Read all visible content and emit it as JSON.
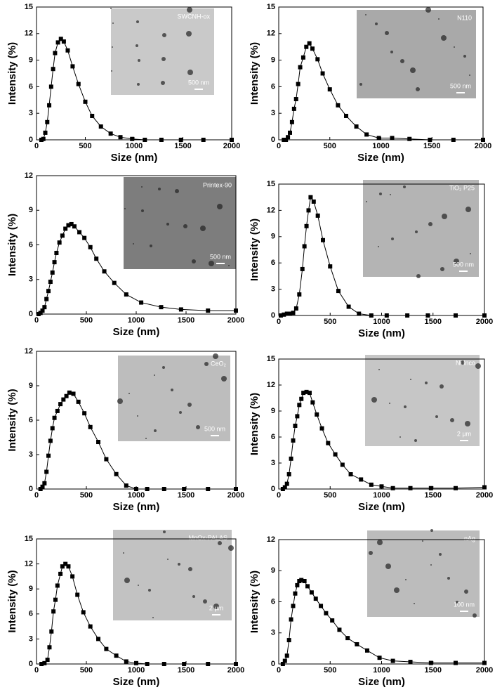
{
  "chart_data": [
    {
      "type": "line",
      "xlabel": "Size (nm)",
      "ylabel": "Intensity (%)",
      "inset_label": "SWCNH-ox",
      "scale_label": "500 nm",
      "color": "#000000",
      "x": [
        50,
        70,
        90,
        110,
        130,
        150,
        170,
        190,
        220,
        250,
        280,
        320,
        370,
        430,
        500,
        570,
        660,
        760,
        860,
        980,
        1110,
        1280,
        1480,
        1710,
        2000
      ],
      "values": [
        0,
        0.1,
        0.8,
        2,
        3.9,
        6,
        8,
        9.8,
        11,
        11.4,
        11.1,
        10.1,
        8.3,
        6.3,
        4.3,
        2.7,
        1.5,
        0.7,
        0.3,
        0.1,
        0,
        0,
        0,
        0,
        0
      ],
      "xlim": [
        0,
        2000
      ],
      "ylim": [
        0,
        15
      ],
      "xticks": [
        0,
        500,
        1000,
        1500,
        2000
      ],
      "yticks": [
        0,
        3,
        6,
        9,
        12,
        15
      ]
    },
    {
      "type": "line",
      "xlabel": "Size (nm)",
      "ylabel": "Intensity (%)",
      "inset_label": "N110",
      "scale_label": "500 nm",
      "color": "#000000",
      "x": [
        50,
        70,
        90,
        110,
        130,
        150,
        170,
        190,
        210,
        240,
        270,
        300,
        330,
        380,
        430,
        500,
        580,
        660,
        760,
        860,
        980,
        1110,
        1280,
        1480,
        1710,
        2000
      ],
      "values": [
        0,
        0,
        0.3,
        0.8,
        2,
        3.5,
        4.6,
        6.3,
        8.2,
        9.3,
        10.5,
        10.9,
        10.3,
        9.1,
        7.5,
        5.7,
        3.9,
        2.7,
        1.5,
        0.6,
        0.2,
        0.2,
        0.1,
        0,
        0,
        0
      ],
      "xlim": [
        0,
        2000
      ],
      "ylim": [
        0,
        15
      ],
      "xticks": [
        0,
        500,
        1000,
        1500,
        2000
      ],
      "yticks": [
        0,
        3,
        6,
        9,
        12,
        15
      ]
    },
    {
      "type": "line",
      "xlabel": "Size (nm)",
      "ylabel": "Intensity (%)",
      "inset_label": "Printex-90",
      "scale_label": "500 nm",
      "color": "#000000",
      "x": [
        20,
        40,
        60,
        80,
        100,
        120,
        140,
        160,
        180,
        200,
        230,
        260,
        290,
        320,
        350,
        380,
        430,
        480,
        540,
        600,
        680,
        780,
        900,
        1050,
        1250,
        1450,
        1720,
        2000
      ],
      "values": [
        0,
        0.1,
        0.3,
        0.6,
        1.3,
        2,
        2.8,
        3.6,
        4.5,
        5.3,
        6.2,
        6.8,
        7.4,
        7.7,
        7.8,
        7.6,
        7.1,
        6.6,
        5.8,
        4.8,
        3.7,
        2.7,
        1.7,
        1,
        0.6,
        0.4,
        0.3,
        0.3
      ],
      "xlim": [
        0,
        2000
      ],
      "ylim": [
        0,
        12
      ],
      "xticks": [
        0,
        500,
        1000,
        1500,
        2000
      ],
      "yticks": [
        0,
        3,
        6,
        9,
        12
      ]
    },
    {
      "type": "line",
      "xlabel": "Size (nm)",
      "ylabel": "Intensity (%)",
      "inset_label": "TiO₂ P25",
      "scale_label": "500 nm",
      "color": "#000000",
      "x": [
        20,
        50,
        80,
        110,
        140,
        170,
        200,
        230,
        250,
        270,
        290,
        310,
        340,
        380,
        430,
        500,
        580,
        680,
        780,
        900,
        1050,
        1250,
        1450,
        1720,
        2000
      ],
      "values": [
        0,
        0.1,
        0.2,
        0.2,
        0.3,
        0.8,
        2.4,
        5.3,
        7.9,
        10.2,
        12,
        13.5,
        13,
        11.4,
        8.6,
        5.6,
        2.8,
        1,
        0.2,
        0,
        0,
        0,
        0,
        0,
        0
      ],
      "xlim": [
        0,
        2000
      ],
      "ylim": [
        0,
        15
      ],
      "xticks": [
        0,
        500,
        1000,
        1500,
        2000
      ],
      "yticks": [
        0,
        3,
        6,
        9,
        12,
        15
      ]
    },
    {
      "type": "line",
      "xlabel": "Size (nm)",
      "ylabel": "Intensity (%)",
      "inset_label": "CeO₂",
      "scale_label": "500 nm",
      "color": "#000000",
      "x": [
        40,
        60,
        80,
        100,
        120,
        140,
        160,
        180,
        210,
        240,
        270,
        300,
        330,
        370,
        420,
        480,
        540,
        620,
        700,
        800,
        900,
        1000,
        1110,
        1280,
        1480,
        1720,
        2000
      ],
      "values": [
        0,
        0.2,
        0.5,
        1.5,
        2.9,
        4.2,
        5.3,
        6.2,
        6.8,
        7.4,
        7.8,
        8.1,
        8.4,
        8.3,
        7.6,
        6.6,
        5.4,
        4.1,
        2.6,
        1.3,
        0.3,
        0,
        0,
        0,
        0,
        0,
        0
      ],
      "xlim": [
        0,
        2000
      ],
      "ylim": [
        0,
        12
      ],
      "xticks": [
        0,
        500,
        1000,
        1500,
        2000
      ],
      "yticks": [
        0,
        3,
        6,
        9,
        12
      ]
    },
    {
      "type": "line",
      "xlabel": "Size (nm)",
      "ylabel": "Intensity (%)",
      "inset_label": "Ni Inco",
      "scale_label": "2 µm",
      "color": "#000000",
      "x": [
        40,
        60,
        80,
        100,
        120,
        140,
        160,
        180,
        200,
        220,
        240,
        270,
        300,
        330,
        370,
        420,
        480,
        550,
        620,
        700,
        800,
        900,
        1000,
        1110,
        1280,
        1480,
        1720,
        2000
      ],
      "values": [
        0,
        0.2,
        0.6,
        1.7,
        3.5,
        5.6,
        7.3,
        8.4,
        9.7,
        10.4,
        11.1,
        11.2,
        11.1,
        10,
        8.6,
        7,
        5.3,
        4,
        2.8,
        1.7,
        1.1,
        0.5,
        0.3,
        0.1,
        0.1,
        0.1,
        0.1,
        0.2
      ],
      "xlim": [
        0,
        2000
      ],
      "ylim": [
        0,
        15
      ],
      "xticks": [
        0,
        500,
        1000,
        1500,
        2000
      ],
      "yticks": [
        0,
        3,
        6,
        9,
        12,
        15
      ]
    },
    {
      "type": "line",
      "xlabel": "Size (nm)",
      "ylabel": "Intensity (%)",
      "inset_label": "MnOx-PALAS",
      "scale_label": "2 µm",
      "color": "#000000",
      "x": [
        50,
        80,
        110,
        130,
        150,
        170,
        190,
        210,
        240,
        260,
        290,
        320,
        360,
        410,
        470,
        540,
        620,
        700,
        800,
        900,
        1000,
        1110,
        1280,
        1480,
        1720,
        2000
      ],
      "values": [
        0,
        0.1,
        0.5,
        2,
        3.9,
        6.3,
        7.7,
        9.4,
        10.8,
        11.7,
        12,
        11.7,
        10.5,
        8.3,
        6.2,
        4.5,
        3,
        1.8,
        1,
        0.3,
        0.1,
        0,
        0,
        0,
        0,
        0
      ],
      "xlim": [
        0,
        2000
      ],
      "ylim": [
        0,
        15
      ],
      "xticks": [
        0,
        500,
        1000,
        1500,
        2000
      ],
      "yticks": [
        0,
        3,
        6,
        9,
        12,
        15
      ]
    },
    {
      "type": "line",
      "xlabel": "Size (nm)",
      "ylabel": "Intensity (%)",
      "inset_label": "nAg",
      "scale_label": "100 nm",
      "color": "#000000",
      "x": [
        40,
        60,
        80,
        100,
        120,
        140,
        160,
        180,
        200,
        220,
        250,
        280,
        320,
        360,
        410,
        460,
        520,
        590,
        670,
        760,
        860,
        980,
        1110,
        1280,
        1480,
        1720,
        2000
      ],
      "values": [
        0,
        0.3,
        0.8,
        2.3,
        4.3,
        5.6,
        6.8,
        7.6,
        8,
        8.1,
        8,
        7.5,
        6.9,
        6.3,
        5.6,
        4.9,
        4.2,
        3.3,
        2.5,
        1.9,
        1.3,
        0.6,
        0.3,
        0.2,
        0.1,
        0.1,
        0.1
      ],
      "xlim": [
        0,
        2000
      ],
      "ylim": [
        0,
        12
      ],
      "xticks": [
        0,
        500,
        1000,
        1500,
        2000
      ],
      "yticks": [
        0,
        3,
        6,
        9,
        12
      ]
    }
  ]
}
